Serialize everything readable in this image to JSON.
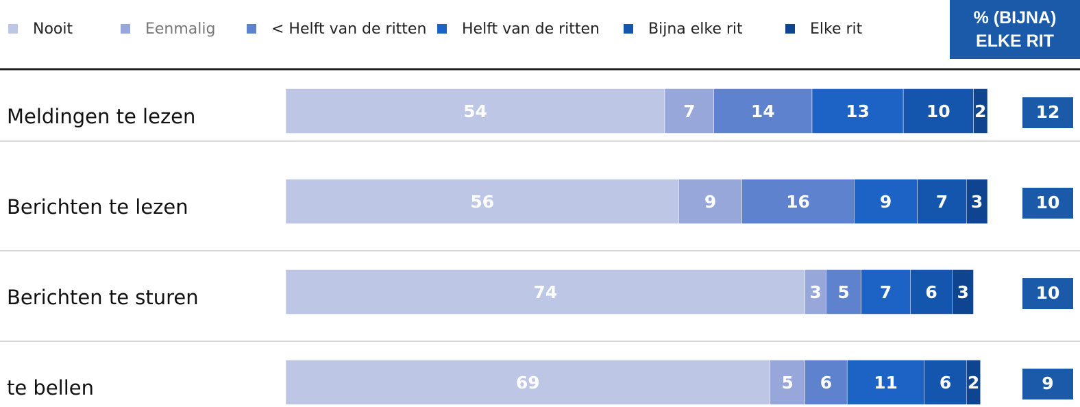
{
  "chart_data": {
    "type": "stacked-bar-horizontal",
    "categories": [
      "Meldingen te lezen",
      "Berichten te lezen",
      "Berichten te sturen",
      "te bellen"
    ],
    "series": [
      {
        "name": "Nooit",
        "color": "#bdc6e5",
        "values": [
          54,
          56,
          74,
          69
        ]
      },
      {
        "name": "Eenmalig",
        "color": "#97a7d9",
        "values": [
          7,
          9,
          3,
          5
        ]
      },
      {
        "name": "< Helft van de ritten",
        "color": "#5f82cf",
        "values": [
          14,
          16,
          5,
          6
        ]
      },
      {
        "name": "Helft van de ritten",
        "color": "#1c63c5",
        "values": [
          13,
          9,
          7,
          11
        ]
      },
      {
        "name": "Bijna elke rit",
        "color": "#1456ad",
        "values": [
          10,
          7,
          6,
          6
        ]
      },
      {
        "name": "Elke rit",
        "color": "#0f4590",
        "values": [
          2,
          3,
          3,
          2
        ]
      }
    ],
    "xlim": [
      0,
      100
    ],
    "summary": {
      "title": "% (BIJNA) ELKE RIT",
      "color": "#1a5aa8",
      "values": [
        12,
        10,
        10,
        9
      ]
    }
  }
}
